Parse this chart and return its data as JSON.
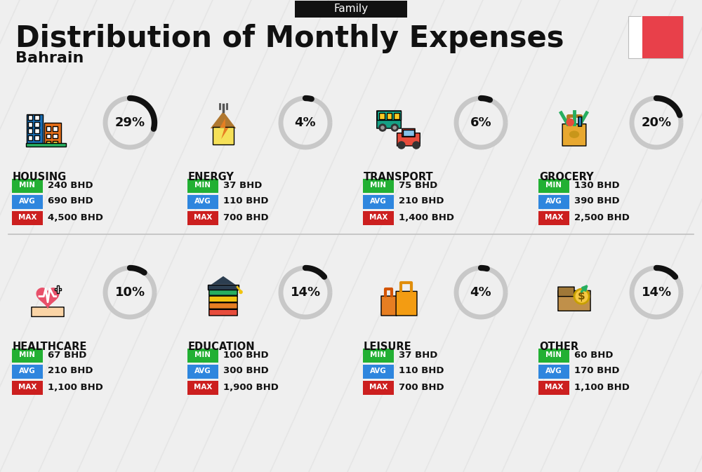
{
  "title": "Distribution of Monthly Expenses",
  "subtitle": "Bahrain",
  "tag": "Family",
  "bg_color": "#efefef",
  "categories": [
    {
      "name": "HOUSING",
      "pct": 29,
      "min": "240 BHD",
      "avg": "690 BHD",
      "max": "4,500 BHD",
      "icon": "housing",
      "row": 0,
      "col": 0
    },
    {
      "name": "ENERGY",
      "pct": 4,
      "min": "37 BHD",
      "avg": "110 BHD",
      "max": "700 BHD",
      "icon": "energy",
      "row": 0,
      "col": 1
    },
    {
      "name": "TRANSPORT",
      "pct": 6,
      "min": "75 BHD",
      "avg": "210 BHD",
      "max": "1,400 BHD",
      "icon": "transport",
      "row": 0,
      "col": 2
    },
    {
      "name": "GROCERY",
      "pct": 20,
      "min": "130 BHD",
      "avg": "390 BHD",
      "max": "2,500 BHD",
      "icon": "grocery",
      "row": 0,
      "col": 3
    },
    {
      "name": "HEALTHCARE",
      "pct": 10,
      "min": "67 BHD",
      "avg": "210 BHD",
      "max": "1,100 BHD",
      "icon": "healthcare",
      "row": 1,
      "col": 0
    },
    {
      "name": "EDUCATION",
      "pct": 14,
      "min": "100 BHD",
      "avg": "300 BHD",
      "max": "1,900 BHD",
      "icon": "education",
      "row": 1,
      "col": 1
    },
    {
      "name": "LEISURE",
      "pct": 4,
      "min": "37 BHD",
      "avg": "110 BHD",
      "max": "700 BHD",
      "icon": "leisure",
      "row": 1,
      "col": 2
    },
    {
      "name": "OTHER",
      "pct": 14,
      "min": "60 BHD",
      "avg": "170 BHD",
      "max": "1,100 BHD",
      "icon": "other",
      "row": 1,
      "col": 3
    }
  ],
  "min_color": "#22b033",
  "avg_color": "#2e86de",
  "max_color": "#cc1f1f",
  "text_color": "#111111",
  "donut_track": "#c8c8c8",
  "donut_fill": "#111111",
  "tag_bg": "#111111",
  "tag_fg": "#ffffff",
  "stripe_color": "#dedede",
  "flag_red": "#e8404a",
  "divider_color": "#c0c0c0"
}
